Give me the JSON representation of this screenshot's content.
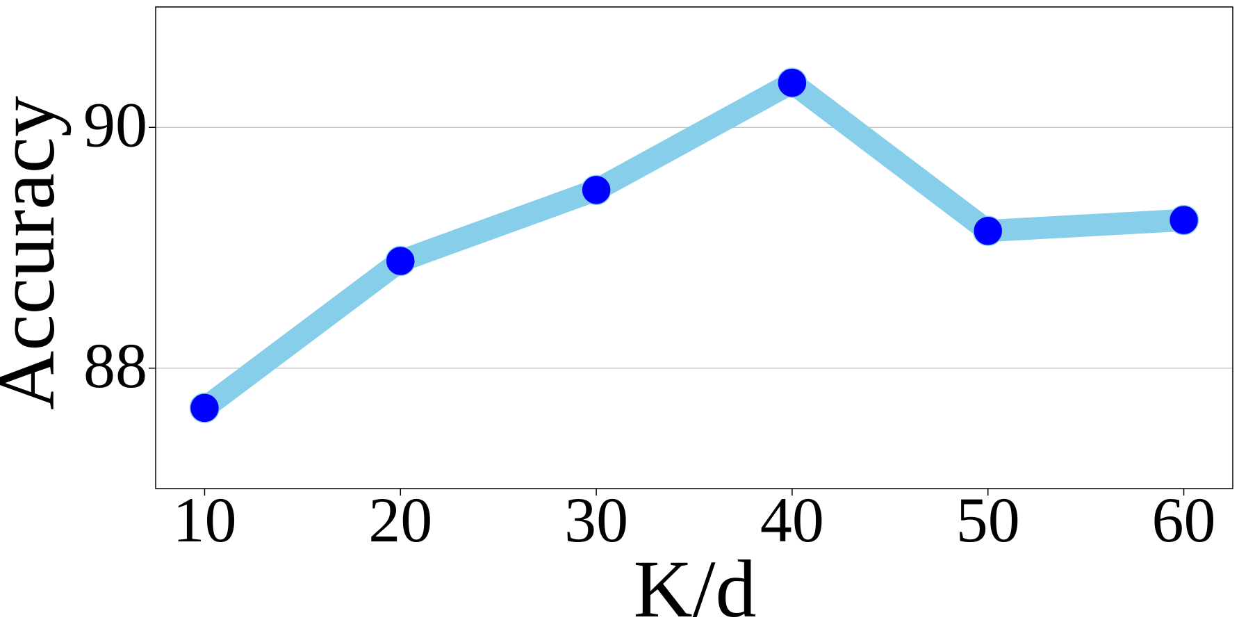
{
  "chart_data": {
    "type": "line",
    "x_label": "K/d",
    "y_label": "Accuracy",
    "x": [
      10,
      20,
      30,
      40,
      50,
      60
    ],
    "series": [
      {
        "name": "Accuracy",
        "line_color": "#87ceeb",
        "color": "#0000ff",
        "values": [
          87.67,
          88.89,
          89.48,
          90.37,
          89.14,
          89.23
        ]
      }
    ],
    "xlim": [
      7.5,
      62.5
    ],
    "xticks": [
      10,
      20,
      30,
      40,
      50,
      60
    ],
    "ylim": [
      87,
      91
    ],
    "yticks": [
      88,
      90
    ],
    "grid": "y",
    "legend": false
  }
}
